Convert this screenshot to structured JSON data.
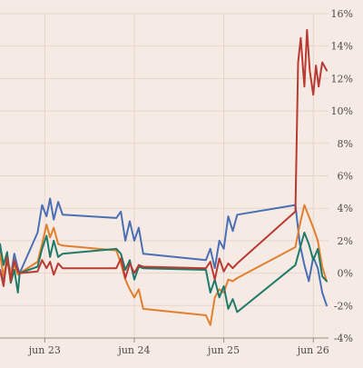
{
  "chart_data": {
    "type": "line",
    "title": "",
    "xlabel": "",
    "ylabel": "",
    "ylim": [
      -4,
      16
    ],
    "y_ticks": [
      16,
      14,
      12,
      10,
      8,
      6,
      4,
      2,
      0,
      -2,
      -4
    ],
    "y_tick_labels": [
      "16%",
      "14%",
      "12%",
      "10%",
      "8%",
      "6%",
      "4%",
      "2%",
      "0%",
      "-2%",
      "-4%"
    ],
    "xlim": [
      "jun 22 12:00",
      "jun 26 20:00"
    ],
    "x_ticks": [
      23,
      24,
      25,
      26
    ],
    "x_tick_labels": [
      "jun 23",
      "jun 24",
      "jun 25",
      "jun 26"
    ],
    "grid": true,
    "y_axis_position": "right",
    "legend": "none",
    "series": [
      {
        "color": "#4a6fb5",
        "points": [
          [
            22.5,
            1.5
          ],
          [
            22.54,
            -0.5
          ],
          [
            22.58,
            0.8
          ],
          [
            22.62,
            -0.2
          ],
          [
            22.66,
            1.2
          ],
          [
            22.7,
            0.3
          ],
          [
            22.72,
            0.0
          ],
          [
            22.92,
            2.5
          ],
          [
            22.97,
            4.2
          ],
          [
            23.02,
            3.5
          ],
          [
            23.06,
            4.6
          ],
          [
            23.1,
            3.3
          ],
          [
            23.15,
            4.4
          ],
          [
            23.2,
            3.6
          ],
          [
            23.8,
            3.4
          ],
          [
            23.85,
            3.8
          ],
          [
            23.9,
            2.0
          ],
          [
            23.95,
            3.2
          ],
          [
            24.0,
            2.0
          ],
          [
            24.05,
            2.8
          ],
          [
            24.1,
            1.2
          ],
          [
            24.8,
            0.8
          ],
          [
            24.85,
            1.5
          ],
          [
            24.9,
            0.3
          ],
          [
            24.95,
            2.0
          ],
          [
            25.0,
            1.5
          ],
          [
            25.05,
            3.5
          ],
          [
            25.1,
            2.6
          ],
          [
            25.15,
            3.6
          ],
          [
            25.8,
            4.2
          ],
          [
            25.85,
            1.8
          ],
          [
            25.9,
            0.5
          ],
          [
            25.95,
            -0.5
          ],
          [
            26.0,
            1.0
          ],
          [
            26.05,
            0.3
          ],
          [
            26.1,
            -1.2
          ],
          [
            26.15,
            -2.0
          ]
        ]
      },
      {
        "color": "#e07f2e",
        "points": [
          [
            22.5,
            1.2
          ],
          [
            22.54,
            -0.2
          ],
          [
            22.58,
            0.9
          ],
          [
            22.62,
            0.1
          ],
          [
            22.66,
            0.5
          ],
          [
            22.7,
            -0.1
          ],
          [
            22.72,
            0.0
          ],
          [
            22.92,
            0.7
          ],
          [
            22.97,
            1.8
          ],
          [
            23.02,
            3.0
          ],
          [
            23.06,
            2.2
          ],
          [
            23.1,
            2.8
          ],
          [
            23.15,
            1.8
          ],
          [
            23.2,
            1.7
          ],
          [
            23.8,
            1.4
          ],
          [
            23.85,
            0.6
          ],
          [
            23.9,
            -0.4
          ],
          [
            23.95,
            -1.0
          ],
          [
            24.0,
            -1.5
          ],
          [
            24.05,
            -1.0
          ],
          [
            24.1,
            -2.2
          ],
          [
            24.8,
            -2.6
          ],
          [
            24.85,
            -3.2
          ],
          [
            24.9,
            -1.5
          ],
          [
            24.95,
            -1.0
          ],
          [
            25.0,
            -1.2
          ],
          [
            25.05,
            -0.4
          ],
          [
            25.1,
            -0.5
          ],
          [
            25.15,
            -0.3
          ],
          [
            25.8,
            1.6
          ],
          [
            25.85,
            3.0
          ],
          [
            25.9,
            4.2
          ],
          [
            25.95,
            3.5
          ],
          [
            26.0,
            2.8
          ],
          [
            26.05,
            2.0
          ],
          [
            26.1,
            0.4
          ],
          [
            26.15,
            -0.5
          ]
        ]
      },
      {
        "color": "#1f7a6a",
        "points": [
          [
            22.5,
            1.8
          ],
          [
            22.54,
            0.5
          ],
          [
            22.58,
            1.3
          ],
          [
            22.62,
            -0.6
          ],
          [
            22.66,
            0.2
          ],
          [
            22.7,
            -1.2
          ],
          [
            22.72,
            0.0
          ],
          [
            22.92,
            0.4
          ],
          [
            22.97,
            1.5
          ],
          [
            23.02,
            2.3
          ],
          [
            23.06,
            1.0
          ],
          [
            23.1,
            2.0
          ],
          [
            23.15,
            1.0
          ],
          [
            23.2,
            1.2
          ],
          [
            23.8,
            1.5
          ],
          [
            23.85,
            1.2
          ],
          [
            23.9,
            0.2
          ],
          [
            23.95,
            0.8
          ],
          [
            24.0,
            -0.4
          ],
          [
            24.05,
            0.4
          ],
          [
            24.1,
            0.3
          ],
          [
            24.8,
            0.2
          ],
          [
            24.85,
            -1.2
          ],
          [
            24.9,
            -0.4
          ],
          [
            24.95,
            -1.5
          ],
          [
            25.0,
            -0.8
          ],
          [
            25.05,
            -2.2
          ],
          [
            25.1,
            -1.6
          ],
          [
            25.15,
            -2.4
          ],
          [
            25.8,
            0.5
          ],
          [
            25.85,
            1.5
          ],
          [
            25.9,
            2.5
          ],
          [
            25.95,
            1.8
          ],
          [
            26.0,
            0.8
          ],
          [
            26.05,
            1.5
          ],
          [
            26.1,
            -0.2
          ],
          [
            26.15,
            -0.5
          ]
        ]
      },
      {
        "color": "#b83a32",
        "points": [
          [
            22.5,
            0.2
          ],
          [
            22.54,
            -0.8
          ],
          [
            22.58,
            1.0
          ],
          [
            22.62,
            -0.5
          ],
          [
            22.66,
            0.8
          ],
          [
            22.7,
            0.1
          ],
          [
            22.72,
            0.0
          ],
          [
            22.92,
            0.1
          ],
          [
            22.97,
            0.8
          ],
          [
            23.02,
            0.3
          ],
          [
            23.06,
            0.7
          ],
          [
            23.1,
            -0.1
          ],
          [
            23.15,
            0.6
          ],
          [
            23.2,
            0.3
          ],
          [
            23.8,
            0.3
          ],
          [
            23.85,
            0.9
          ],
          [
            23.9,
            -0.3
          ],
          [
            23.95,
            0.6
          ],
          [
            24.0,
            0.0
          ],
          [
            24.05,
            0.5
          ],
          [
            24.1,
            0.4
          ],
          [
            24.8,
            0.3
          ],
          [
            24.85,
            0.7
          ],
          [
            24.9,
            -0.4
          ],
          [
            24.95,
            0.9
          ],
          [
            25.0,
            0.1
          ],
          [
            25.05,
            0.6
          ],
          [
            25.1,
            0.3
          ],
          [
            25.15,
            0.6
          ],
          [
            25.8,
            3.8
          ],
          [
            25.83,
            13.0
          ],
          [
            25.86,
            14.5
          ],
          [
            25.9,
            11.5
          ],
          [
            25.93,
            15.0
          ],
          [
            25.96,
            12.5
          ],
          [
            26.0,
            11.0
          ],
          [
            26.03,
            12.8
          ],
          [
            26.06,
            11.5
          ],
          [
            26.1,
            13.0
          ],
          [
            26.15,
            12.5
          ]
        ]
      }
    ]
  }
}
